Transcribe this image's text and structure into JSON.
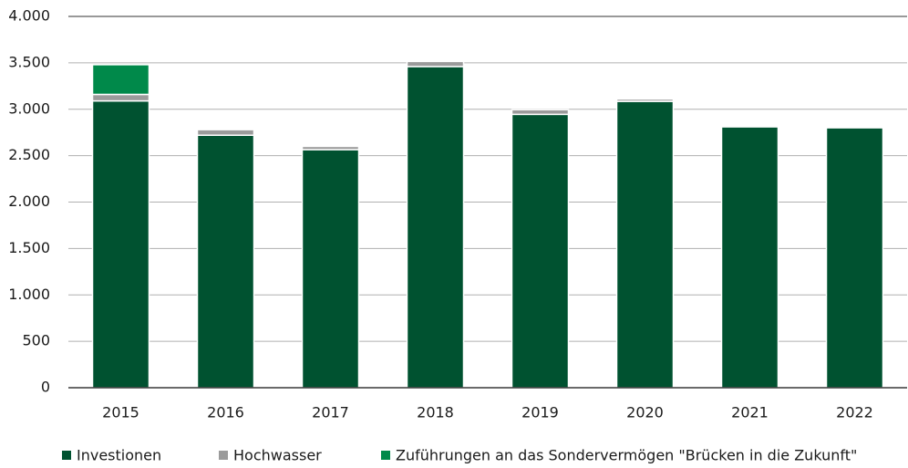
{
  "chart_data": {
    "type": "stacked_bar",
    "categories": [
      "2015",
      "2016",
      "2017",
      "2018",
      "2019",
      "2020",
      "2021",
      "2022"
    ],
    "series": [
      {
        "name": "Investionen",
        "color": "#005230",
        "values": [
          3090,
          2720,
          2565,
          3460,
          2945,
          3085,
          2810,
          2800
        ]
      },
      {
        "name": "Hochwasser",
        "color": "#9b9b9b",
        "values": [
          70,
          60,
          35,
          55,
          50,
          25,
          0,
          0
        ]
      },
      {
        "name": "Zuführungen an das Sondervermögen \"Brücken in die Zukunft\"",
        "color": "#00894a",
        "values": [
          320,
          0,
          0,
          0,
          0,
          0,
          0,
          0
        ]
      }
    ],
    "ylim": [
      0,
      4000
    ],
    "yticks": [
      0,
      500,
      {
        "value": 1000,
        "label": "1.000"
      },
      {
        "value": 1500,
        "label": "1.500"
      },
      {
        "value": 2000,
        "label": "2.000"
      },
      {
        "value": 2500,
        "label": "2.500"
      },
      {
        "value": 3000,
        "label": "3.000"
      },
      {
        "value": 3500,
        "label": "3.500"
      },
      {
        "value": 4000,
        "label": "4.000"
      }
    ],
    "grid": true,
    "legend": "bottom"
  }
}
